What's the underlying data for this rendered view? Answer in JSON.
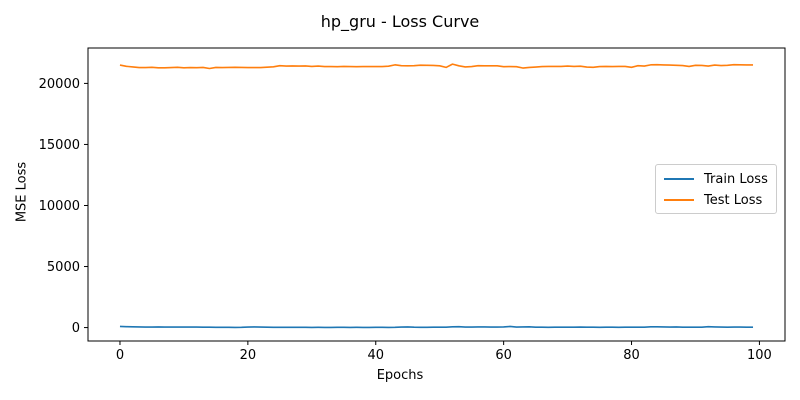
{
  "chart_data": {
    "type": "line",
    "title": "hp_gru - Loss Curve",
    "xlabel": "Epochs",
    "ylabel": "MSE Loss",
    "xlim": [
      -5,
      104
    ],
    "ylim": [
      -1100,
      22900
    ],
    "xticks": [
      0,
      20,
      40,
      60,
      80,
      100
    ],
    "yticks": [
      0,
      5000,
      10000,
      15000,
      20000
    ],
    "grid": false,
    "legend_position": "center-right",
    "x": [
      0,
      1,
      2,
      3,
      4,
      5,
      6,
      7,
      8,
      9,
      10,
      11,
      12,
      13,
      14,
      15,
      16,
      17,
      18,
      19,
      20,
      21,
      22,
      23,
      24,
      25,
      26,
      27,
      28,
      29,
      30,
      31,
      32,
      33,
      34,
      35,
      36,
      37,
      38,
      39,
      40,
      41,
      42,
      43,
      44,
      45,
      46,
      47,
      48,
      49,
      50,
      51,
      52,
      53,
      54,
      55,
      56,
      57,
      58,
      59,
      60,
      61,
      62,
      63,
      64,
      65,
      66,
      67,
      68,
      69,
      70,
      71,
      72,
      73,
      74,
      75,
      76,
      77,
      78,
      79,
      80,
      81,
      82,
      83,
      84,
      85,
      86,
      87,
      88,
      89,
      90,
      91,
      92,
      93,
      94,
      95,
      96,
      97,
      98,
      99
    ],
    "series": [
      {
        "name": "Train Loss",
        "color": "#1f77b4",
        "values": [
          90,
          75,
          60,
          50,
          45,
          45,
          50,
          40,
          40,
          45,
          40,
          45,
          40,
          35,
          30,
          25,
          20,
          20,
          15,
          20,
          45,
          55,
          40,
          30,
          25,
          25,
          20,
          25,
          20,
          20,
          15,
          20,
          15,
          10,
          25,
          20,
          15,
          20,
          15,
          15,
          20,
          20,
          15,
          20,
          40,
          50,
          30,
          25,
          25,
          30,
          30,
          35,
          60,
          70,
          40,
          45,
          55,
          50,
          45,
          45,
          50,
          90,
          45,
          50,
          65,
          30,
          30,
          25,
          30,
          30,
          30,
          35,
          45,
          30,
          30,
          25,
          30,
          35,
          25,
          30,
          30,
          35,
          30,
          65,
          60,
          55,
          45,
          50,
          35,
          30,
          30,
          35,
          70,
          55,
          45,
          30,
          45,
          40,
          35,
          35
        ]
      },
      {
        "name": "Test Loss",
        "color": "#ff7f0e",
        "values": [
          21500,
          21400,
          21350,
          21300,
          21300,
          21320,
          21280,
          21280,
          21300,
          21320,
          21280,
          21300,
          21290,
          21310,
          21220,
          21310,
          21300,
          21310,
          21320,
          21310,
          21300,
          21300,
          21300,
          21330,
          21360,
          21450,
          21420,
          21430,
          21420,
          21430,
          21390,
          21420,
          21380,
          21380,
          21370,
          21390,
          21380,
          21370,
          21380,
          21380,
          21380,
          21380,
          21410,
          21520,
          21450,
          21440,
          21450,
          21490,
          21480,
          21470,
          21440,
          21310,
          21580,
          21440,
          21350,
          21380,
          21450,
          21440,
          21440,
          21440,
          21370,
          21380,
          21370,
          21260,
          21310,
          21340,
          21380,
          21390,
          21390,
          21390,
          21420,
          21390,
          21410,
          21340,
          21320,
          21380,
          21390,
          21380,
          21390,
          21390,
          21320,
          21450,
          21420,
          21520,
          21530,
          21510,
          21500,
          21480,
          21460,
          21390,
          21480,
          21470,
          21420,
          21500,
          21460,
          21480,
          21530,
          21520,
          21510,
          21510
        ]
      }
    ]
  }
}
